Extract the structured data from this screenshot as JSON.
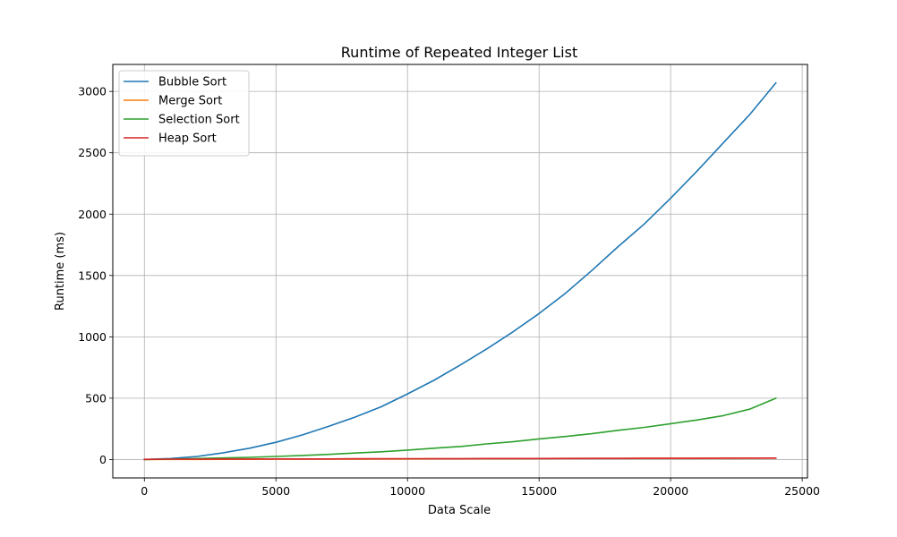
{
  "chart_data": {
    "type": "line",
    "title": "Runtime of Repeated Integer List",
    "xlabel": "Data Scale",
    "ylabel": "Runtime (ms)",
    "xlim": [
      -1200,
      25200
    ],
    "ylim": [
      -150,
      3220
    ],
    "xticks": [
      0,
      5000,
      10000,
      15000,
      20000,
      25000
    ],
    "yticks": [
      0,
      500,
      1000,
      1500,
      2000,
      2500,
      3000
    ],
    "grid": true,
    "legend_position": "top-left",
    "x": [
      0,
      1000,
      2000,
      3000,
      4000,
      5000,
      6000,
      7000,
      8000,
      9000,
      10000,
      11000,
      12000,
      13000,
      14000,
      15000,
      16000,
      17000,
      18000,
      19000,
      20000,
      21000,
      22000,
      23000,
      24000
    ],
    "series": [
      {
        "name": "Bubble Sort",
        "color": "#1f77b4",
        "values": [
          0,
          8,
          25,
          55,
          92,
          140,
          200,
          270,
          345,
          430,
          535,
          645,
          770,
          900,
          1040,
          1190,
          1355,
          1540,
          1735,
          1920,
          2130,
          2350,
          2580,
          2810,
          3070
        ]
      },
      {
        "name": "Merge Sort",
        "color": "#ff7f0e",
        "values": [
          0,
          1,
          1,
          2,
          2,
          3,
          3,
          4,
          4,
          5,
          5,
          6,
          6,
          7,
          7,
          8,
          8,
          9,
          9,
          10,
          10,
          11,
          11,
          12,
          12
        ]
      },
      {
        "name": "Selection Sort",
        "color": "#2ca02c",
        "values": [
          0,
          3,
          8,
          13,
          18,
          25,
          33,
          42,
          53,
          63,
          77,
          92,
          106,
          127,
          145,
          168,
          188,
          210,
          238,
          262,
          292,
          322,
          358,
          410,
          500
        ]
      },
      {
        "name": "Heap Sort",
        "color": "#d62728",
        "values": [
          2,
          3,
          3,
          4,
          4,
          5,
          5,
          5,
          6,
          6,
          7,
          7,
          7,
          8,
          8,
          8,
          9,
          9,
          9,
          10,
          10,
          10,
          11,
          11,
          12
        ]
      }
    ]
  }
}
